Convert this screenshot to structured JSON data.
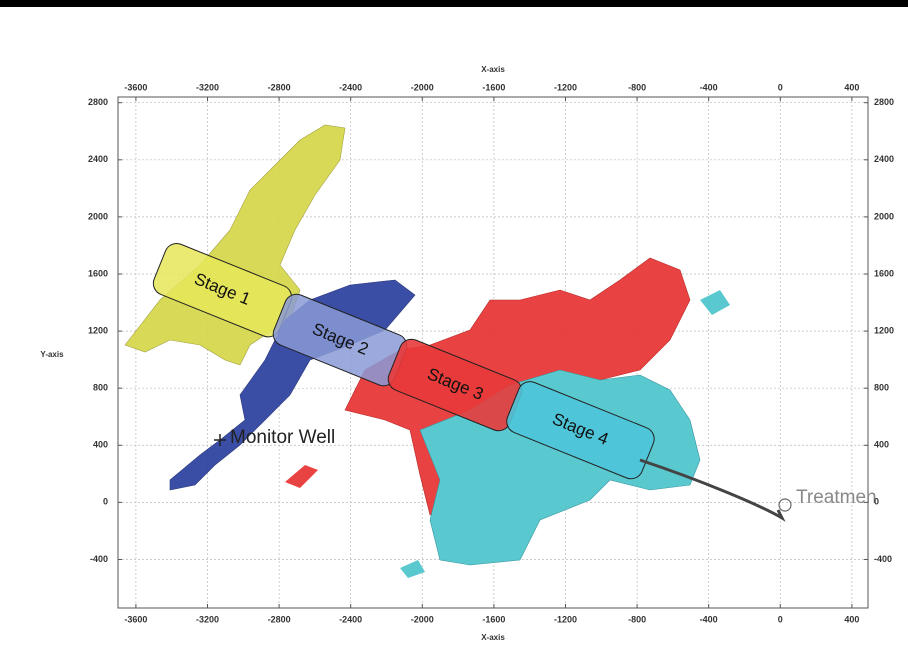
{
  "chart_data": {
    "type": "scatter",
    "xlabel": "X-axis",
    "ylabel": "Y-axis",
    "xlim": [
      -3700,
      490
    ],
    "ylim": [
      -740,
      2840
    ],
    "xticks": [
      -3600,
      -3200,
      -2800,
      -2400,
      -2000,
      -1600,
      -1200,
      -800,
      -400,
      0,
      400
    ],
    "yticks": [
      -400,
      0,
      400,
      800,
      1200,
      1600,
      2000,
      2400,
      2800
    ],
    "grid": true,
    "annotations": [
      {
        "text": "Stage 1"
      },
      {
        "text": "Stage 2"
      },
      {
        "text": "Stage 3"
      },
      {
        "text": "Stage 4"
      },
      {
        "text": "Monitor Well"
      },
      {
        "text": "Treatmen"
      }
    ]
  }
}
